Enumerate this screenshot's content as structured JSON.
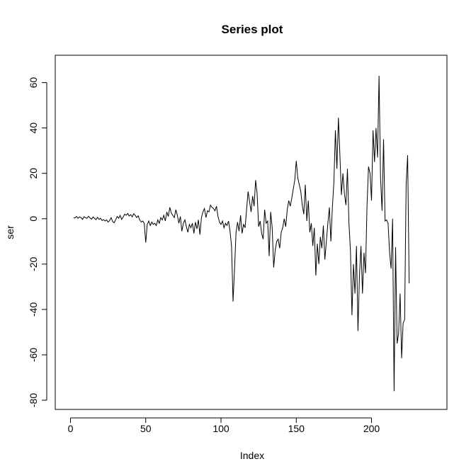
{
  "chart_data": {
    "type": "line",
    "title": "Series plot",
    "xlabel": "Index",
    "ylabel": "ser",
    "xlim": [
      0,
      240
    ],
    "ylim": [
      -80,
      68
    ],
    "x_ticks": [
      0,
      50,
      100,
      150,
      200
    ],
    "y_ticks": [
      -80,
      -60,
      -40,
      -20,
      0,
      20,
      40,
      60
    ],
    "x_tick_labels": [
      "0",
      "50",
      "100",
      "150",
      "200"
    ],
    "y_tick_labels": [
      "-80",
      "-60",
      "-40",
      "-20",
      "0",
      "20",
      "40",
      "60"
    ],
    "grid": false,
    "legend": "none",
    "line_color": "#000000",
    "series": [
      {
        "x_start": 2,
        "values": [
          0.5,
          0.3,
          1.0,
          0.2,
          0.8,
          0.5,
          -0.3,
          0.9,
          0.4,
          0.2,
          1.1,
          0.3,
          -0.2,
          0.8,
          0.1,
          -0.4,
          0.6,
          -0.3,
          0.2,
          -0.8,
          -0.4,
          -1.0,
          -0.5,
          -1.5,
          -0.8,
          0.5,
          -1.2,
          -1.8,
          -0.5,
          1.0,
          0.2,
          1.5,
          -0.3,
          0.8,
          2.0,
          1.5,
          2.3,
          1.2,
          1.8,
          0.8,
          2.2,
          1.5,
          0.5,
          1.3,
          -0.5,
          -1.5,
          -1.0,
          -2.0,
          -10.5,
          -2.5,
          -1.0,
          -3.0,
          -1.5,
          -2.5,
          -2.0,
          -3.0,
          -0.5,
          -2.0,
          0.5,
          -0.5,
          1.5,
          -1.0,
          3.0,
          1.0,
          5.0,
          2.5,
          1.5,
          0.5,
          4.0,
          1.5,
          -2.0,
          1.0,
          -5.5,
          -2.0,
          -0.5,
          -3.5,
          -6.0,
          -2.5,
          -4.0,
          -2.0,
          -6.5,
          -1.5,
          -4.5,
          -0.5,
          -7.0,
          0.5,
          3.0,
          4.5,
          0.5,
          3.5,
          3.0,
          6.0,
          5.0,
          4.5,
          3.5,
          5.5,
          1.0,
          -1.5,
          -2.5,
          -1.0,
          -4.0,
          -2.0,
          -3.0,
          -1.0,
          -5.5,
          -12.0,
          -36.5,
          -22.0,
          -6.0,
          -1.5,
          -5.5,
          1.5,
          -6.5,
          -2.5,
          -4.0,
          4.0,
          12.0,
          7.5,
          3.0,
          10.0,
          5.5,
          17.0,
          11.0,
          -3.5,
          -1.0,
          -6.5,
          -9.0,
          4.0,
          -2.0,
          -1.0,
          -16.5,
          3.0,
          -4.0,
          -21.5,
          -14.0,
          -10.0,
          -9.0,
          -13.0,
          -6.0,
          -4.0,
          0.0,
          -3.5,
          4.0,
          8.0,
          5.5,
          9.0,
          13.0,
          17.0,
          25.5,
          18.0,
          15.0,
          12.0,
          6.0,
          2.0,
          15.0,
          -1.0,
          8.0,
          -6.0,
          -2.0,
          -12.0,
          -4.0,
          -25.0,
          -11.0,
          -20.0,
          -8.0,
          -13.0,
          -3.0,
          -18.0,
          -10.0,
          -2.0,
          5.0,
          -10.0,
          5.0,
          16.0,
          39.0,
          22.0,
          44.5,
          28.0,
          10.5,
          20.0,
          11.0,
          6.0,
          22.0,
          -2.0,
          -14.0,
          -42.5,
          -20.0,
          -33.0,
          -12.0,
          -49.5,
          -25.0,
          -12.0,
          -33.0,
          -15.0,
          -24.0,
          5.5,
          23.0,
          20.0,
          8.0,
          39.0,
          25.0,
          40.0,
          27.0,
          63.0,
          18.0,
          3.5,
          35.0,
          -1.0,
          -0.5,
          -2.0,
          -15.0,
          -22.0,
          0.0,
          -76.0,
          -12.5,
          -55.0,
          -50.5,
          -33.0,
          -61.5,
          -46.0,
          -44.5,
          15.0,
          28.0,
          -28.5
        ]
      }
    ]
  }
}
